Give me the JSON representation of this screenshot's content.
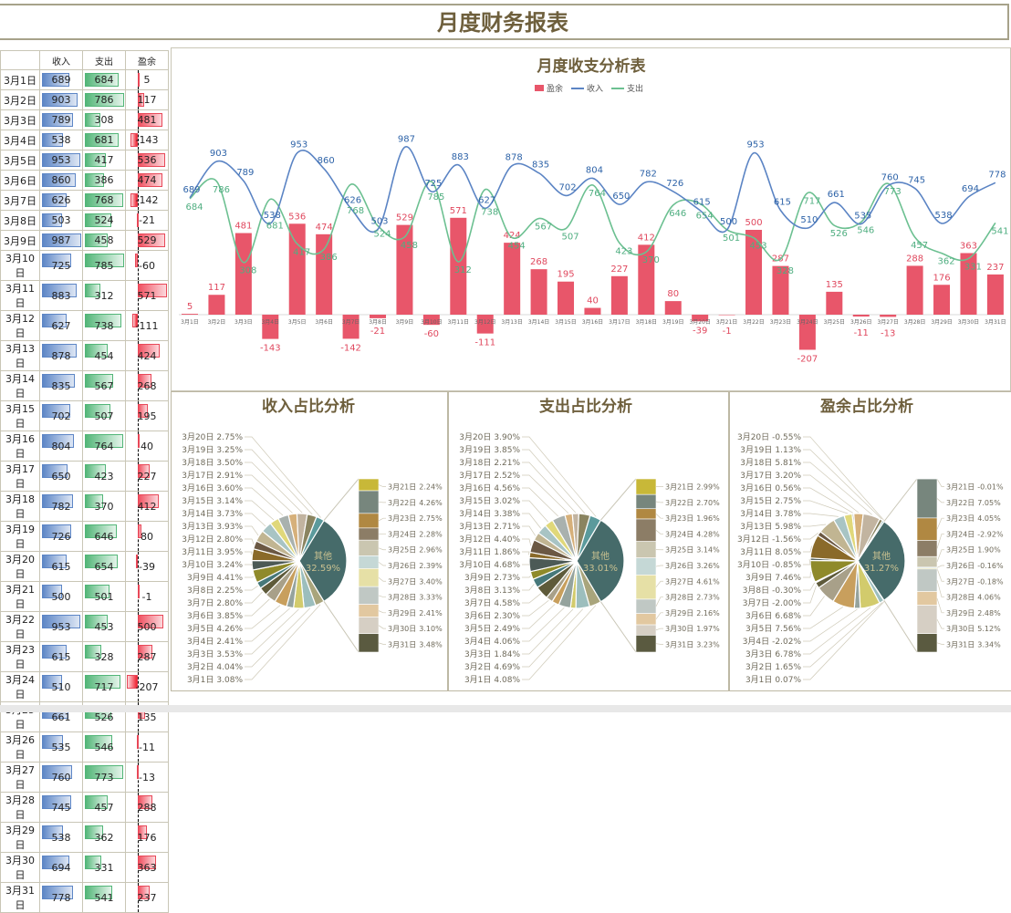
{
  "title": "月度财务报表",
  "table": {
    "headers": [
      "",
      "收入",
      "支出",
      "盈余"
    ]
  },
  "line_chart": {
    "title": "月度收支分析表",
    "legend": [
      "盈余",
      "收入",
      "支出"
    ]
  },
  "pies": [
    {
      "title": "收入占比分析",
      "other_label": "其他"
    },
    {
      "title": "支出占比分析",
      "other_label": "其他"
    },
    {
      "title": "盈余占比分析",
      "other_label": "其他"
    }
  ],
  "colors": {
    "surplus": "#e8566a",
    "income": "#5b84c4",
    "expense": "#6cc091",
    "title": "#6e5f3c"
  },
  "chart_data": [
    {
      "type": "bar+line",
      "title": "月度收支分析表",
      "categories": [
        "3月1日",
        "3月2日",
        "3月3日",
        "3月4日",
        "3月5日",
        "3月6日",
        "3月7日",
        "3月8日",
        "3月9日",
        "3月10日",
        "3月11日",
        "3月12日",
        "3月13日",
        "3月14日",
        "3月15日",
        "3月16日",
        "3月17日",
        "3月18日",
        "3月19日",
        "3月20日",
        "3月21日",
        "3月22日",
        "3月23日",
        "3月24日",
        "3月25日",
        "3月26日",
        "3月27日",
        "3月28日",
        "3月29日",
        "3月30日",
        "3月31日"
      ],
      "series": [
        {
          "name": "盈余",
          "type": "bar",
          "values": [
            5,
            117,
            481,
            -143,
            536,
            474,
            -142,
            -21,
            529,
            -60,
            571,
            -111,
            424,
            268,
            195,
            40,
            227,
            412,
            80,
            -39,
            -1,
            500,
            287,
            -207,
            135,
            -11,
            -13,
            288,
            176,
            363,
            237
          ]
        },
        {
          "name": "收入",
          "type": "line",
          "values": [
            689,
            903,
            789,
            538,
            953,
            860,
            626,
            503,
            987,
            725,
            883,
            627,
            878,
            835,
            702,
            804,
            650,
            782,
            726,
            615,
            500,
            953,
            615,
            510,
            661,
            535,
            760,
            745,
            538,
            694,
            778
          ]
        },
        {
          "name": "支出",
          "type": "line",
          "values": [
            684,
            786,
            308,
            681,
            417,
            386,
            768,
            524,
            458,
            785,
            312,
            738,
            454,
            567,
            507,
            764,
            423,
            370,
            646,
            654,
            501,
            453,
            328,
            717,
            526,
            546,
            773,
            457,
            362,
            331,
            541
          ]
        }
      ],
      "legend": "top"
    },
    {
      "type": "pie",
      "title": "收入占比分析",
      "series": "收入",
      "other_label": "其他",
      "other_from": "3月21日"
    },
    {
      "type": "pie",
      "title": "支出占比分析",
      "series": "支出",
      "other_label": "其他",
      "other_from": "3月21日"
    },
    {
      "type": "pie",
      "title": "盈余占比分析",
      "series": "盈余",
      "other_label": "其他",
      "other_from": "3月21日"
    }
  ]
}
